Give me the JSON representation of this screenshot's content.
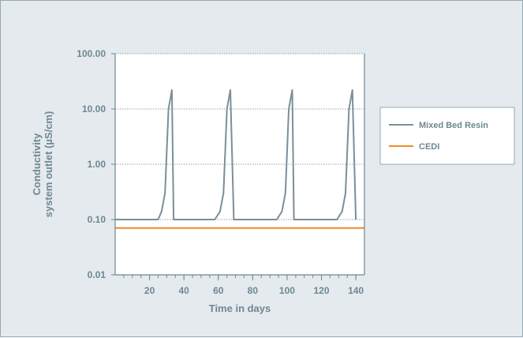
{
  "chart_data": {
    "type": "line",
    "xlabel": "Time in days",
    "ylabel_line1": "Conductivity",
    "ylabel_line2": "system outlet (µS/cm)",
    "y_scale": "log",
    "ylim": [
      0.01,
      100
    ],
    "xlim": [
      0,
      145
    ],
    "x_ticks": [
      20,
      40,
      60,
      80,
      100,
      120,
      140
    ],
    "y_ticks": [
      {
        "value": 0.01,
        "label": "0.01"
      },
      {
        "value": 0.1,
        "label": "0.10"
      },
      {
        "value": 1,
        "label": "1.00"
      },
      {
        "value": 10,
        "label": "10.00"
      },
      {
        "value": 100,
        "label": "100.00"
      }
    ],
    "gridlines": "dotted horizontal at decades",
    "legend_position": "right",
    "series": [
      {
        "name": "Mixed Bed Resin",
        "color": "#7a8f9a",
        "points": [
          [
            0,
            0.1
          ],
          [
            25,
            0.1
          ],
          [
            27,
            0.14
          ],
          [
            29,
            0.3
          ],
          [
            31,
            10
          ],
          [
            33,
            22
          ],
          [
            34,
            0.1
          ],
          [
            58,
            0.1
          ],
          [
            61,
            0.14
          ],
          [
            63,
            0.3
          ],
          [
            65,
            10
          ],
          [
            67,
            22
          ],
          [
            69,
            0.1
          ],
          [
            94,
            0.1
          ],
          [
            97,
            0.14
          ],
          [
            99,
            0.3
          ],
          [
            101,
            10
          ],
          [
            103,
            22
          ],
          [
            104,
            0.1
          ],
          [
            129,
            0.1
          ],
          [
            132,
            0.14
          ],
          [
            134,
            0.3
          ],
          [
            136,
            10
          ],
          [
            138,
            22
          ],
          [
            140,
            0.1
          ]
        ]
      },
      {
        "name": "CEDI",
        "color": "#f08a24",
        "points": [
          [
            0,
            0.07
          ],
          [
            145,
            0.07
          ]
        ]
      }
    ]
  }
}
